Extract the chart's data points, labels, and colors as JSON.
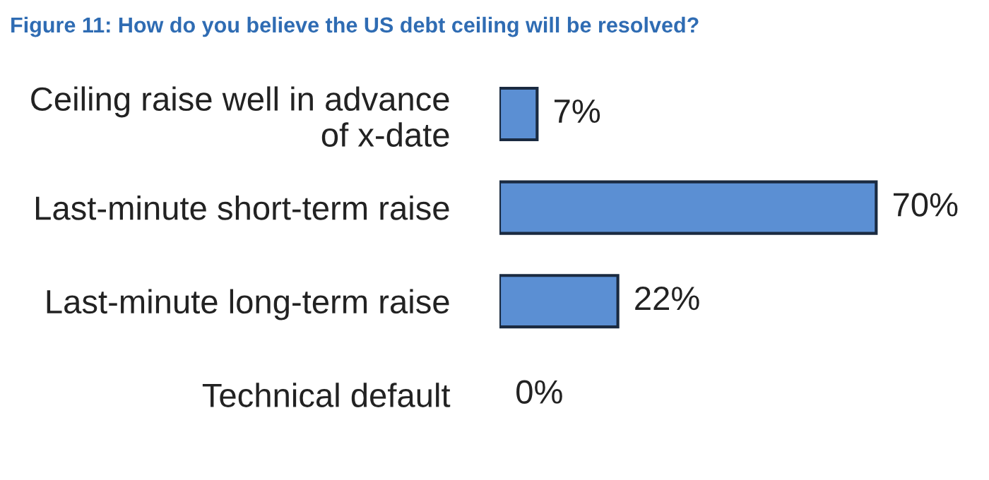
{
  "chart_data": {
    "type": "bar",
    "orientation": "horizontal",
    "title": "Figure 11: How do you believe the US debt ceiling will be resolved?",
    "categories": [
      "Ceiling raise well in advance\nof x-date",
      "Last-minute short-term raise",
      "Last-minute long-term raise",
      "Technical default"
    ],
    "series": [
      {
        "color": "#5b8fd3",
        "values": [
          7,
          70,
          22,
          0
        ],
        "value_labels": [
          "7%",
          "70%",
          "22%",
          "0%"
        ]
      }
    ],
    "grid": false,
    "legend": false
  }
}
